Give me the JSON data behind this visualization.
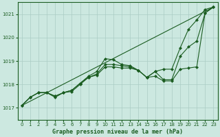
{
  "background_color": "#cce8e0",
  "plot_background": "#cce8e0",
  "grid_color": "#aaccc4",
  "line_color": "#1a5c20",
  "title": "Graphe pression niveau de la mer (hPa)",
  "xlim": [
    -0.5,
    23.5
  ],
  "ylim": [
    1016.5,
    1021.5
  ],
  "yticks": [
    1017,
    1018,
    1019,
    1020,
    1021
  ],
  "xticks": [
    0,
    1,
    2,
    3,
    4,
    5,
    6,
    7,
    8,
    9,
    10,
    11,
    12,
    13,
    14,
    15,
    16,
    17,
    18,
    19,
    20,
    21,
    22,
    23
  ],
  "series": [
    {
      "x": [
        0,
        23
      ],
      "y": [
        1017.1,
        1021.3
      ],
      "has_markers": false
    },
    {
      "x": [
        0,
        1,
        2,
        3,
        4,
        5,
        6,
        7,
        8,
        9,
        10,
        11,
        12,
        13,
        14,
        15,
        16,
        17,
        18,
        19,
        20,
        21,
        22,
        23
      ],
      "y": [
        1017.1,
        1017.45,
        1017.65,
        1017.65,
        1017.45,
        1017.65,
        1017.75,
        1018.05,
        1018.35,
        1018.55,
        1019.1,
        1019.05,
        1018.85,
        1018.8,
        1018.6,
        1018.3,
        1018.55,
        1018.65,
        1018.65,
        1019.55,
        1020.35,
        1020.75,
        1021.2,
        1021.3
      ],
      "has_markers": true
    },
    {
      "x": [
        0,
        1,
        2,
        3,
        4,
        5,
        6,
        7,
        8,
        9,
        10,
        11,
        12,
        13,
        14,
        15,
        16,
        17,
        18,
        19,
        20,
        21,
        22,
        23
      ],
      "y": [
        1017.1,
        1017.45,
        1017.65,
        1017.65,
        1017.5,
        1017.65,
        1017.75,
        1018.05,
        1018.3,
        1018.45,
        1018.85,
        1018.85,
        1018.8,
        1018.75,
        1018.6,
        1018.3,
        1018.55,
        1018.2,
        1018.2,
        1019.2,
        1019.6,
        1019.85,
        1021.05,
        1021.3
      ],
      "has_markers": true
    },
    {
      "x": [
        0,
        1,
        2,
        3,
        4,
        5,
        6,
        7,
        8,
        9,
        10,
        11,
        12,
        13,
        14,
        15,
        16,
        17,
        18,
        19,
        20,
        21,
        22,
        23
      ],
      "y": [
        1017.1,
        1017.45,
        1017.65,
        1017.65,
        1017.5,
        1017.65,
        1017.7,
        1018.0,
        1018.3,
        1018.4,
        1018.75,
        1018.75,
        1018.7,
        1018.7,
        1018.6,
        1018.3,
        1018.35,
        1018.15,
        1018.15,
        1018.65,
        1018.7,
        1018.75,
        1021.05,
        1021.3
      ],
      "has_markers": true
    }
  ]
}
